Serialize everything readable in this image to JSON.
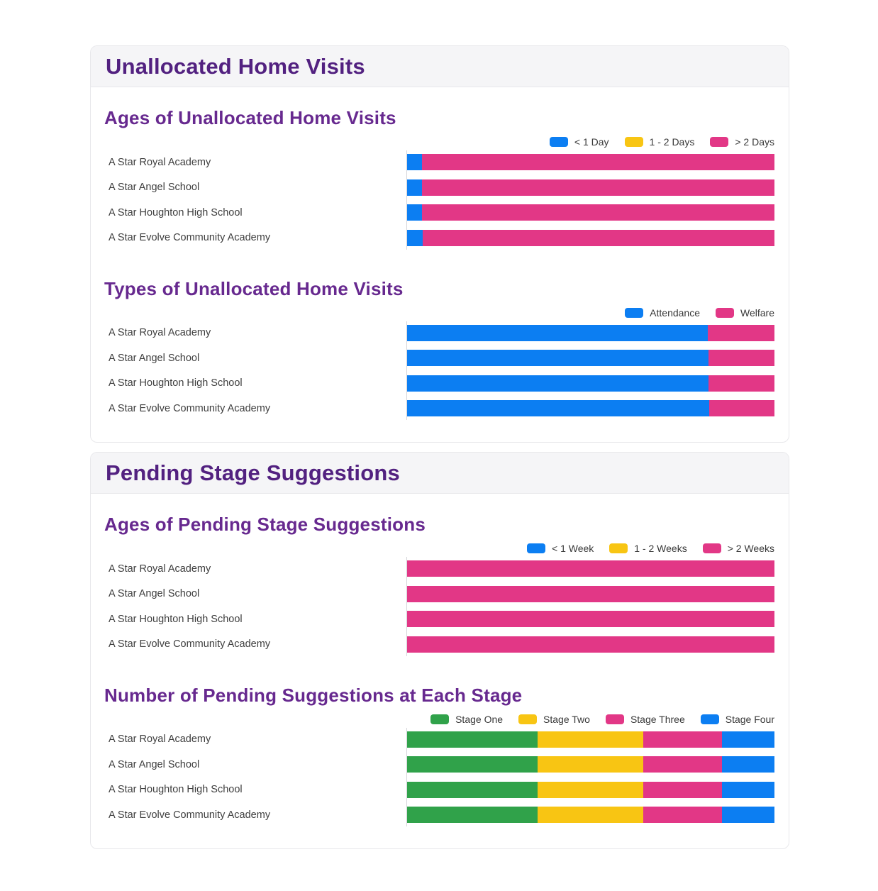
{
  "colors": {
    "blue": "#0c7ef2",
    "yellow": "#f8c513",
    "pink": "#e23786",
    "green": "#30a24a",
    "section_title": "#522180",
    "chart_title": "#67298f"
  },
  "schools": [
    "A Star Royal Academy",
    "A Star Angel School",
    "A Star Houghton High School",
    "A Star Evolve Community Academy"
  ],
  "cards": [
    {
      "title": "Unallocated Home Visits",
      "chart_indexes": [
        0,
        1
      ]
    },
    {
      "title": "Pending Stage Suggestions",
      "chart_indexes": [
        2,
        3
      ]
    }
  ],
  "chart_data": [
    {
      "type": "bar",
      "orientation": "horizontal",
      "stacked": true,
      "title": "Ages of Unallocated Home Visits",
      "legend_position": "top-right",
      "units": "percent of bar length (no numeric axis shown; estimated from pixels)",
      "categories": [
        "A Star Royal Academy",
        "A Star Angel School",
        "A Star Houghton High School",
        "A Star Evolve Community Academy"
      ],
      "series": [
        {
          "name": "< 1 Day",
          "color": "blue",
          "values": [
            4.3,
            4.3,
            4.3,
            4.5
          ]
        },
        {
          "name": "1 - 2 Days",
          "color": "yellow",
          "values": [
            0,
            0,
            0,
            0
          ]
        },
        {
          "name": "> 2 Days",
          "color": "pink",
          "values": [
            95.7,
            95.7,
            95.7,
            95.5
          ]
        }
      ]
    },
    {
      "type": "bar",
      "orientation": "horizontal",
      "stacked": true,
      "title": "Types of Unallocated Home Visits",
      "legend_position": "top-right",
      "units": "percent of bar length (no numeric axis shown; estimated from pixels)",
      "categories": [
        "A Star Royal Academy",
        "A Star Angel School",
        "A Star Houghton High School",
        "A Star Evolve Community Academy"
      ],
      "series": [
        {
          "name": "Attendance",
          "color": "blue",
          "values": [
            81.9,
            82.1,
            82.1,
            82.3
          ]
        },
        {
          "name": "Welfare",
          "color": "pink",
          "values": [
            18.1,
            17.9,
            17.9,
            17.7
          ]
        }
      ]
    },
    {
      "type": "bar",
      "orientation": "horizontal",
      "stacked": true,
      "title": "Ages of Pending Stage Suggestions",
      "legend_position": "top-right",
      "units": "percent of bar length (no numeric axis shown; estimated from pixels)",
      "categories": [
        "A Star Royal Academy",
        "A Star Angel School",
        "A Star Houghton High School",
        "A Star Evolve Community Academy"
      ],
      "series": [
        {
          "name": "< 1 Week",
          "color": "blue",
          "values": [
            0,
            0,
            0,
            0
          ]
        },
        {
          "name": "1 - 2 Weeks",
          "color": "yellow",
          "values": [
            0,
            0,
            0,
            0
          ]
        },
        {
          "name": "> 2 Weeks",
          "color": "pink",
          "values": [
            100,
            100,
            100,
            100
          ]
        }
      ]
    },
    {
      "type": "bar",
      "orientation": "horizontal",
      "stacked": true,
      "title": "Number of Pending Suggestions at Each Stage",
      "legend_position": "top-right",
      "units": "percent of bar length (no numeric axis shown; estimated from pixels; ratio ≈ 5:4:3:2)",
      "categories": [
        "A Star Royal Academy",
        "A Star Angel School",
        "A Star Houghton High School",
        "A Star Evolve Community Academy"
      ],
      "series": [
        {
          "name": "Stage One",
          "color": "green",
          "values": [
            35.7,
            35.7,
            35.7,
            35.7
          ]
        },
        {
          "name": "Stage Two",
          "color": "yellow",
          "values": [
            28.6,
            28.6,
            28.6,
            28.6
          ]
        },
        {
          "name": "Stage Three",
          "color": "pink",
          "values": [
            21.4,
            21.4,
            21.4,
            21.4
          ]
        },
        {
          "name": "Stage Four",
          "color": "blue",
          "values": [
            14.3,
            14.3,
            14.3,
            14.3
          ]
        }
      ]
    }
  ]
}
